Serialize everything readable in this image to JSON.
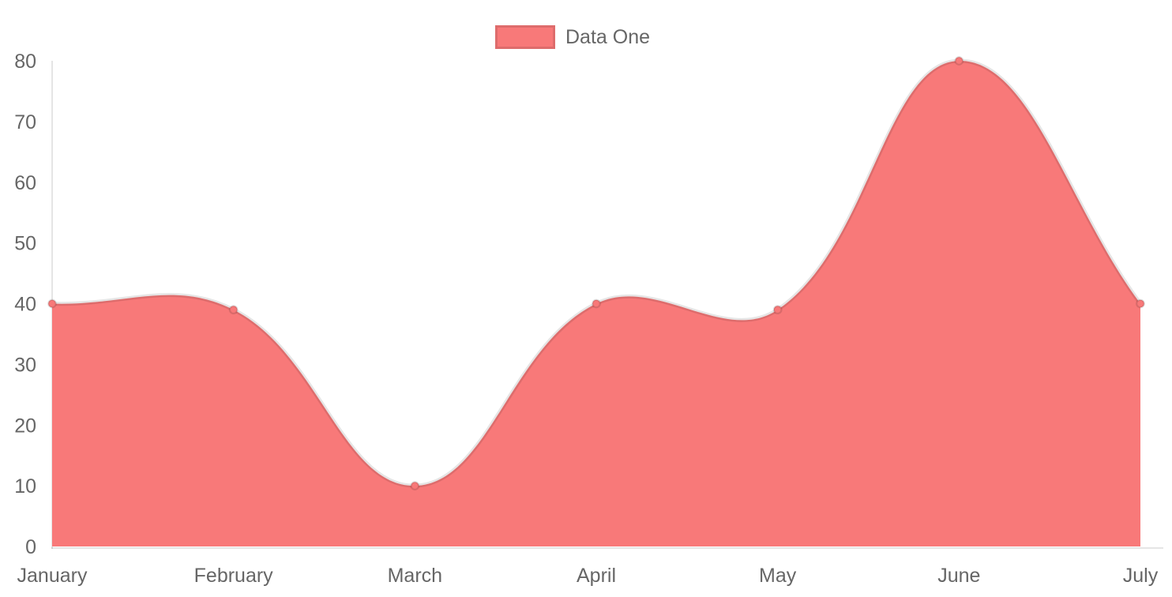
{
  "legend": {
    "label": "Data One",
    "swatch_color": "#f87979",
    "swatch_border_color": "rgba(0,0,0,0.10)"
  },
  "chart_data": {
    "type": "area",
    "title": "",
    "xlabel": "",
    "ylabel": "",
    "categories": [
      "January",
      "February",
      "March",
      "April",
      "May",
      "June",
      "July"
    ],
    "series": [
      {
        "name": "Data One",
        "values": [
          40,
          39,
          10,
          40,
          39,
          80,
          40
        ],
        "fill_color": "#f87979",
        "line_color": "rgba(0,0,0,0.10)",
        "point_fill_color": "#f87979",
        "point_border_color": "rgba(0,0,0,0.12)"
      }
    ],
    "ylim": [
      0,
      80
    ],
    "yticks": [
      0,
      10,
      20,
      30,
      40,
      50,
      60,
      70,
      80
    ],
    "grid": false,
    "legend_position": "top",
    "curve": "bezier",
    "curve_tension": 0.4,
    "axis_line_color": "rgba(0,0,0,0.10)",
    "tick_text_color": "#666666"
  }
}
